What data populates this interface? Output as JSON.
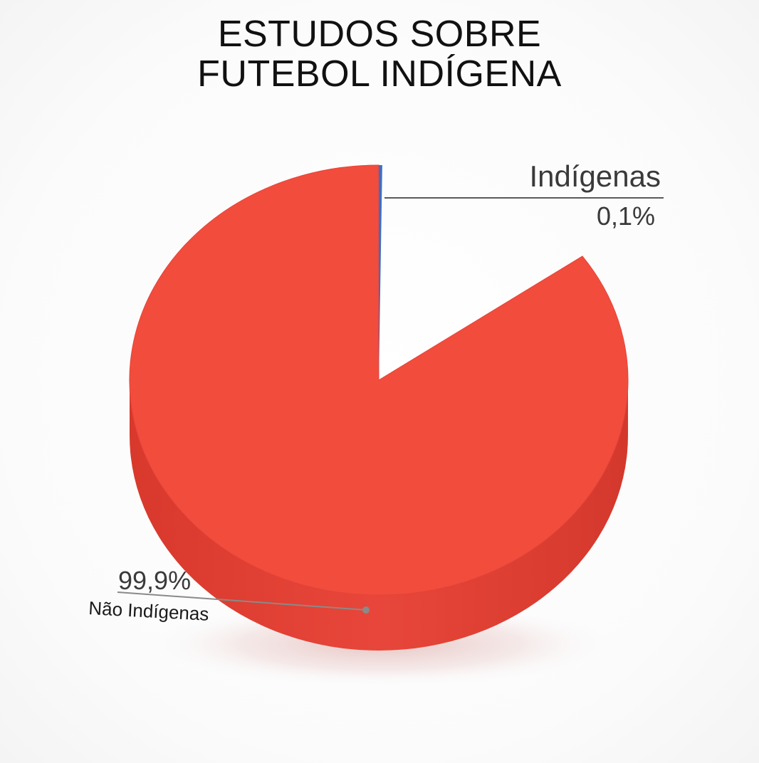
{
  "chart_data": {
    "type": "pie",
    "title_lines": [
      "ESTUDOS SOBRE",
      "FUTEBOL INDÍGENA"
    ],
    "slices": [
      {
        "name": "Indígenas",
        "value": 0.1,
        "value_label": "0,1%",
        "color": "#3b6fc4"
      },
      {
        "name": "Não Indígenas",
        "value": 99.9,
        "value_label": "99,9%",
        "color": "#f24c3d"
      }
    ],
    "style": "3d",
    "legend": "none"
  }
}
